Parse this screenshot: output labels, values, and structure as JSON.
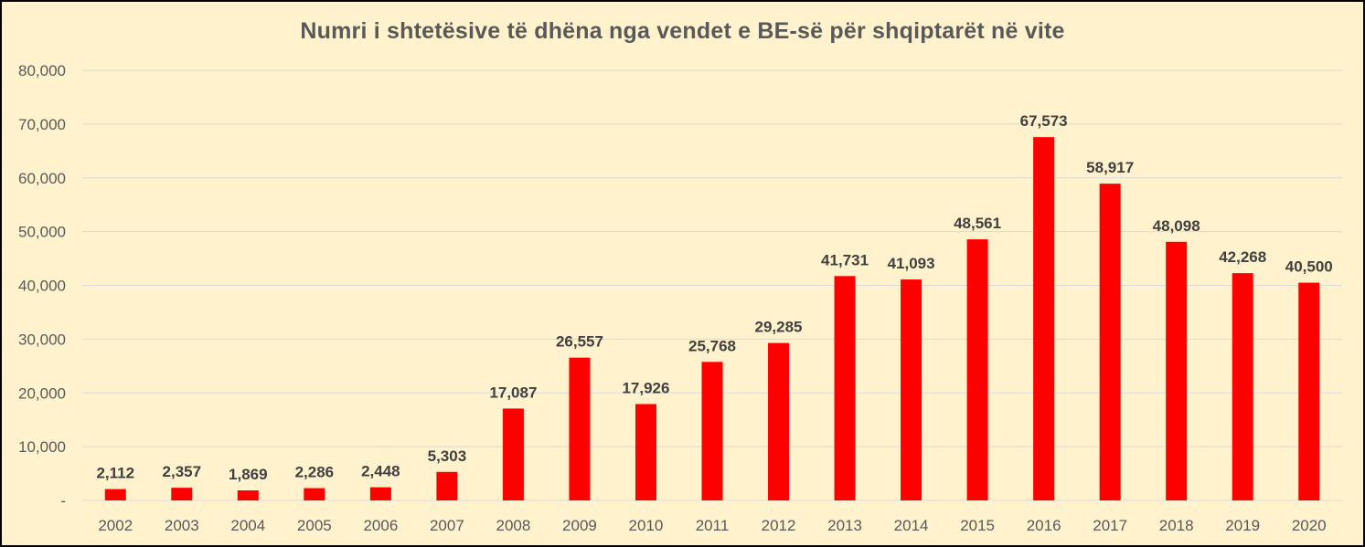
{
  "chart_data": {
    "type": "bar",
    "title": "Numri i shtetësive të dhëna nga vendet e BE-së për shqiptarët në vite",
    "xlabel": "",
    "ylabel": "",
    "categories": [
      "2002",
      "2003",
      "2004",
      "2005",
      "2006",
      "2007",
      "2008",
      "2009",
      "2010",
      "2011",
      "2012",
      "2013",
      "2014",
      "2015",
      "2016",
      "2017",
      "2018",
      "2019",
      "2020"
    ],
    "values": [
      2112,
      2357,
      1869,
      2286,
      2448,
      5303,
      17087,
      26557,
      17926,
      25768,
      29285,
      41731,
      41093,
      48561,
      67573,
      58917,
      48098,
      42268,
      40500
    ],
    "data_labels": [
      "2,112",
      "2,357",
      "1,869",
      "2,286",
      "2,448",
      "5,303",
      "17,087",
      "26,557",
      "17,926",
      "25,768",
      "29,285",
      "41,731",
      "41,093",
      "48,561",
      "67,573",
      "58,917",
      "48,098",
      "42,268",
      "40,500"
    ],
    "ylim": [
      0,
      80000
    ],
    "y_ticks": [
      0,
      10000,
      20000,
      30000,
      40000,
      50000,
      60000,
      70000,
      80000
    ],
    "y_tick_labels": [
      "-",
      "10,000",
      "20,000",
      "30,000",
      "40,000",
      "50,000",
      "60,000",
      "70,000",
      "80,000"
    ],
    "grid": true,
    "legend": "none",
    "colors": {
      "bar": "#FF0000",
      "background": "#FFF2CC",
      "gridline": "#D9D9D9",
      "title": "#595959",
      "tick_text": "#595959",
      "data_label_text": "#404040",
      "border": "#000000"
    }
  }
}
